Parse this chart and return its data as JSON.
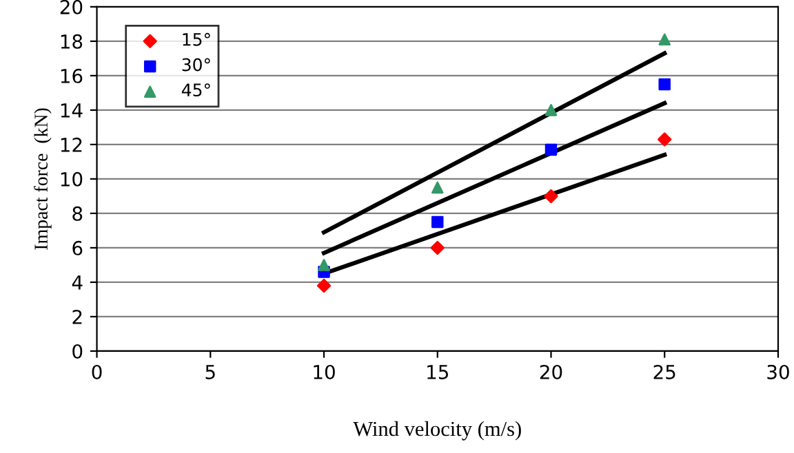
{
  "chart_data": {
    "type": "scatter",
    "xlabel": "Wind velocity (m/s)",
    "ylabel": "Impact force  (kN)",
    "series": [
      {
        "name": "15°",
        "color": "#ff0000",
        "marker": "diamond",
        "x": [
          10,
          15,
          20,
          25
        ],
        "values": [
          3.8,
          6.0,
          9.0,
          12.3
        ]
      },
      {
        "name": "30°",
        "color": "#0000ff",
        "marker": "square",
        "x": [
          10,
          15,
          20,
          25
        ],
        "values": [
          4.6,
          7.5,
          11.7,
          15.5
        ]
      },
      {
        "name": "45°",
        "color": "#339966",
        "marker": "triangle",
        "x": [
          10,
          15,
          20,
          25
        ],
        "values": [
          5.0,
          9.5,
          14.0,
          18.1
        ]
      },
      {
        "type": "line",
        "color": "#000000",
        "marker": "none",
        "x": [
          10,
          25
        ],
        "values": [
          4.5,
          11.4
        ]
      },
      {
        "type": "line",
        "color": "#000000",
        "marker": "none",
        "x": [
          10,
          25
        ],
        "values": [
          5.7,
          14.4
        ]
      },
      {
        "type": "line",
        "color": "#000000",
        "marker": "none",
        "x": [
          10,
          25
        ],
        "values": [
          6.9,
          17.3
        ]
      }
    ],
    "xlim": [
      0,
      30
    ],
    "xticks": [
      0,
      5,
      10,
      15,
      20,
      25,
      30
    ],
    "ylim": [
      0,
      20
    ],
    "yticks": [
      0,
      2,
      4,
      6,
      8,
      10,
      12,
      14,
      16,
      18,
      20
    ],
    "grid": "y",
    "legend": "top left"
  }
}
